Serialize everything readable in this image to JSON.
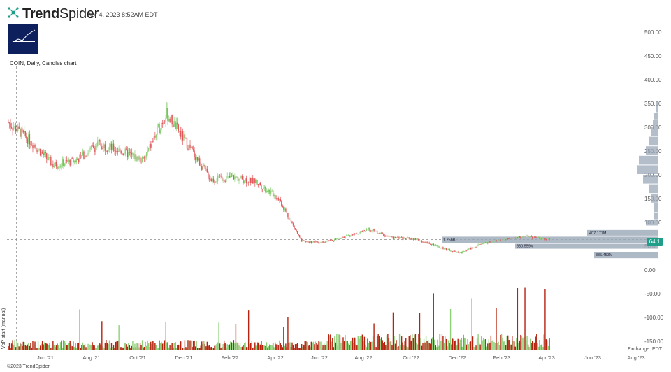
{
  "header": {
    "brand": "TrendSpider",
    "timestamp": "Apr 4, 2023 8:52AM EDT",
    "chart_label": "COIN, Daily, Candles chart",
    "copyright": "©2023 TrendSpider",
    "timezone": "Exchange: EDT",
    "volume_label": "VbP start (manual)"
  },
  "current_price": "64.1",
  "colors": {
    "up": "#8fd17a",
    "down": "#e0575a",
    "vol_up": "#8fd17a",
    "vol_down": "#b5230f",
    "vbp": "#9aa8b8",
    "badge": "#1f9e8a"
  },
  "chart_data": {
    "type": "candlestick",
    "title": "COIN, Daily, Candles chart",
    "price_axis": {
      "ticks": [
        "500.00",
        "450.00",
        "400.00",
        "350.00",
        "300.00",
        "250.00",
        "200.00",
        "150.00",
        "100.00",
        "50.00",
        "0.00",
        "-50.00",
        "-100.00",
        "-150.00"
      ],
      "values": [
        500,
        450,
        400,
        350,
        300,
        250,
        200,
        150,
        100,
        50,
        0,
        -50,
        -100,
        -150
      ]
    },
    "x_axis": {
      "ticks": [
        "Jun '21",
        "Aug '21",
        "Oct '21",
        "Dec '21",
        "Feb '22",
        "Apr '22",
        "Jun '22",
        "Aug '22",
        "Oct '22",
        "Dec '22",
        "Feb '23",
        "Apr '23",
        "Jun '23",
        "Aug '23"
      ]
    },
    "series_approx_close": [
      {
        "date": "Apr '21",
        "close": 310
      },
      {
        "date": "May '21",
        "close": 270
      },
      {
        "date": "Jun '21",
        "close": 220
      },
      {
        "date": "Jul '21",
        "close": 230
      },
      {
        "date": "Aug '21",
        "close": 265
      },
      {
        "date": "Sep '21",
        "close": 250
      },
      {
        "date": "Oct '21",
        "close": 230
      },
      {
        "date": "Nov '21",
        "close": 330
      },
      {
        "date": "Dec '21",
        "close": 260
      },
      {
        "date": "Jan '22",
        "close": 190
      },
      {
        "date": "Feb '22",
        "close": 195
      },
      {
        "date": "Mar '22",
        "close": 185
      },
      {
        "date": "Apr '22",
        "close": 150
      },
      {
        "date": "May '22",
        "close": 60
      },
      {
        "date": "Jun '22",
        "close": 58
      },
      {
        "date": "Jul '22",
        "close": 70
      },
      {
        "date": "Aug '22",
        "close": 85
      },
      {
        "date": "Sep '22",
        "close": 68
      },
      {
        "date": "Oct '22",
        "close": 65
      },
      {
        "date": "Nov '22",
        "close": 50
      },
      {
        "date": "Dec '22",
        "close": 35
      },
      {
        "date": "Jan '23",
        "close": 55
      },
      {
        "date": "Feb '23",
        "close": 65
      },
      {
        "date": "Mar '23",
        "close": 70
      },
      {
        "date": "Apr '23",
        "close": 64.1
      }
    ],
    "volume_by_price_labels": [
      "407.177M",
      "1.256B",
      "830.559M",
      "385.453M"
    ]
  }
}
